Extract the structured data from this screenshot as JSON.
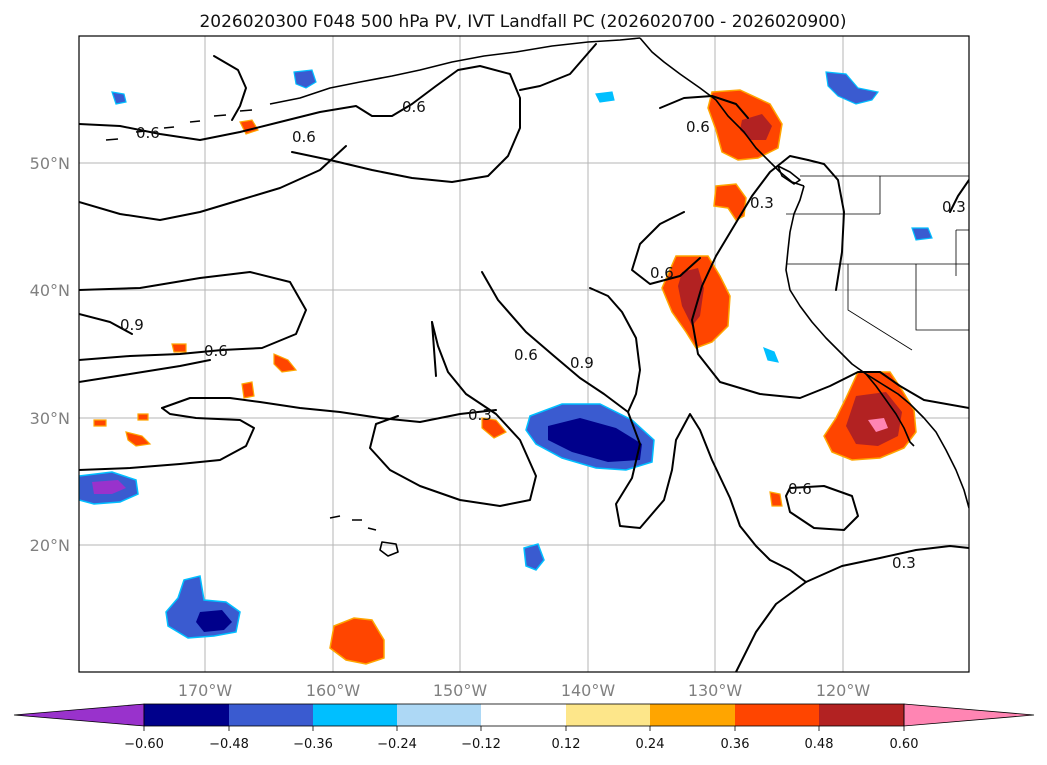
{
  "title": "2026020300 F048 500 hPa PV, IVT Landfall PC (2026020700 - 2026020900)",
  "lat_labels": [
    "50°N",
    "40°N",
    "30°N",
    "20°N"
  ],
  "lon_labels": [
    "170°W",
    "160°W",
    "150°W",
    "140°W",
    "130°W",
    "120°W"
  ],
  "contour_labels": [
    "0.6",
    "0.6",
    "0.6",
    "0.3",
    "0.6",
    "0.3",
    "0.9",
    "0.6",
    "0.6",
    "0.3",
    "0.6",
    "0.9",
    "0.6",
    "0.3"
  ],
  "colorbar": {
    "tick_labels": [
      "−0.60",
      "−0.48",
      "−0.36",
      "−0.24",
      "−0.12",
      "0.12",
      "0.24",
      "0.36",
      "0.48",
      "0.60"
    ],
    "colors": [
      "#9932cc",
      "#00008b",
      "#3a5bd0",
      "#00bfff",
      "#add8f5",
      "#ffffff",
      "#fde68a",
      "#ffa500",
      "#ff4500",
      "#b22222",
      "#ff85b3"
    ]
  }
}
